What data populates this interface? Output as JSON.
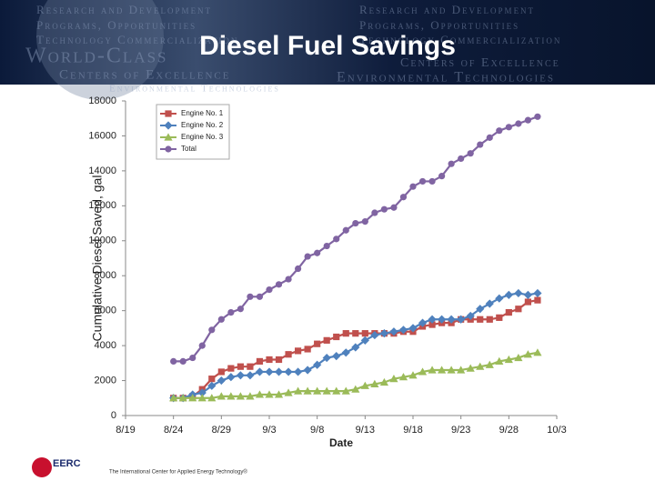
{
  "slide": {
    "title": "Diesel Fuel Savings",
    "banner_texts": [
      "Research and Development",
      "Programs, Opportunities",
      "Technology Commercialization",
      "World-Class",
      "Centers of Excellence",
      "Environmental Technologies"
    ],
    "banner_texts_right": [
      "Research and Development",
      "Programs, Opportunities",
      "Technology Commercialization",
      "Centers of Excellence",
      "Environmental Technologies"
    ],
    "logo": "EERC",
    "tagline": "The International Center for Applied Energy Technology®"
  },
  "chart_data": {
    "type": "line",
    "x_label": "Date",
    "y_label": "Cumulative Diesel Saved, gal",
    "x": [
      "8/24",
      "8/25",
      "8/26",
      "8/27",
      "8/28",
      "8/29",
      "8/30",
      "8/31",
      "9/1",
      "9/2",
      "9/3",
      "9/4",
      "9/5",
      "9/6",
      "9/7",
      "9/8",
      "9/9",
      "9/10",
      "9/11",
      "9/12",
      "9/13",
      "9/14",
      "9/15",
      "9/16",
      "9/17",
      "9/18",
      "9/19",
      "9/20",
      "9/21",
      "9/22",
      "9/23",
      "9/24",
      "9/25",
      "9/26",
      "9/27",
      "9/28",
      "9/29",
      "9/30",
      "10/1"
    ],
    "xlim": [
      "8/19",
      "10/3"
    ],
    "xticks": [
      "8/19",
      "8/24",
      "8/29",
      "9/3",
      "9/8",
      "9/13",
      "9/18",
      "9/23",
      "9/28",
      "10/3"
    ],
    "ylim": [
      0,
      18000
    ],
    "yticks": [
      0,
      2000,
      4000,
      6000,
      8000,
      10000,
      12000,
      14000,
      16000,
      18000
    ],
    "grid": false,
    "legend": "upper left",
    "series": [
      {
        "name": "Engine No. 1",
        "color": "#c0504d",
        "marker": "square",
        "values": [
          1000,
          1000,
          1100,
          1500,
          2100,
          2500,
          2700,
          2800,
          2800,
          3100,
          3200,
          3200,
          3500,
          3700,
          3800,
          4100,
          4300,
          4500,
          4700,
          4700,
          4700,
          4700,
          4700,
          4700,
          4800,
          4800,
          5100,
          5200,
          5300,
          5300,
          5500,
          5500,
          5500,
          5500,
          5600,
          5900,
          6100,
          6500,
          6600
        ]
      },
      {
        "name": "Engine No. 2",
        "color": "#4f81bd",
        "marker": "diamond",
        "values": [
          1000,
          1000,
          1200,
          1300,
          1700,
          2000,
          2200,
          2300,
          2300,
          2500,
          2500,
          2500,
          2500,
          2500,
          2600,
          2900,
          3300,
          3400,
          3600,
          3900,
          4300,
          4600,
          4700,
          4800,
          4900,
          5000,
          5300,
          5500,
          5500,
          5500,
          5500,
          5700,
          6100,
          6400,
          6700,
          6900,
          7000,
          6900,
          7000
        ]
      },
      {
        "name": "Engine No. 3",
        "color": "#9bbb59",
        "marker": "triangle",
        "values": [
          1000,
          1000,
          1000,
          1000,
          1000,
          1100,
          1100,
          1100,
          1100,
          1200,
          1200,
          1200,
          1300,
          1400,
          1400,
          1400,
          1400,
          1400,
          1400,
          1500,
          1700,
          1800,
          1900,
          2100,
          2200,
          2300,
          2500,
          2600,
          2600,
          2600,
          2600,
          2700,
          2800,
          2900,
          3100,
          3200,
          3300,
          3500,
          3600
        ]
      },
      {
        "name": "Total",
        "color": "#8064a2",
        "marker": "circle",
        "values": [
          3100,
          3100,
          3300,
          4000,
          4900,
          5500,
          5900,
          6100,
          6800,
          6800,
          7200,
          7500,
          7800,
          8400,
          9100,
          9300,
          9700,
          10100,
          10600,
          11000,
          11100,
          11600,
          11800,
          11900,
          12500,
          13100,
          13400,
          13400,
          13700,
          14400,
          14700,
          15000,
          15500,
          15900,
          16300,
          16500,
          16700,
          16900,
          17100
        ]
      }
    ]
  }
}
